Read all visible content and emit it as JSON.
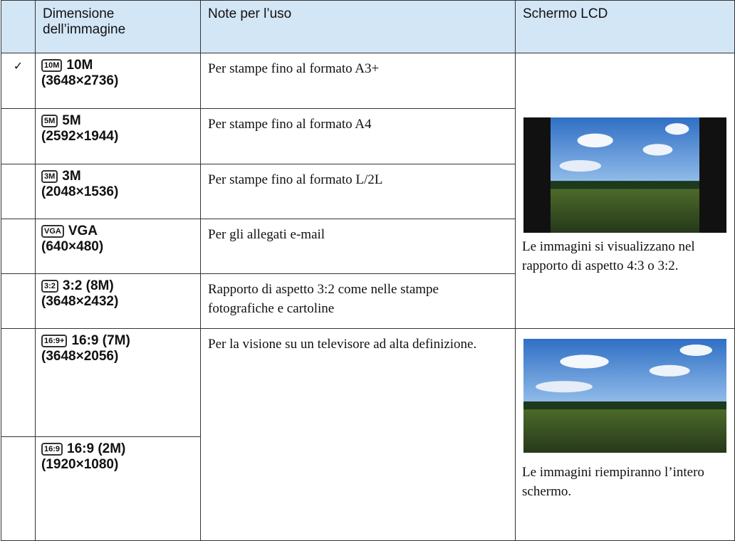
{
  "table": {
    "header": [
      "Dimensione dell’immagine",
      "Note per l’uso",
      "Schermo LCD"
    ],
    "rows": [
      {
        "icon": "10M",
        "size": "10M",
        "resolution": "(3648×2736)",
        "note": "Per stampe fino al formato A3+"
      },
      {
        "icon": "5M",
        "size": "5M",
        "resolution": "(2592×1944)",
        "note": "Per stampe fino al formato A4"
      },
      {
        "icon": "3M",
        "size": "3M",
        "resolution": "(2048×1536)",
        "note": "Per stampe fino al formato L/2L"
      },
      {
        "icon": "VGA",
        "size": "VGA",
        "resolution": "(640×480)",
        "note": "Per gli allegati e-mail"
      },
      {
        "icon": "3:2",
        "size": "3:2 (8M)",
        "resolution": "(3648×2432)",
        "note": "Rapporto di aspetto 3:2 come nelle stampe fotografiche e cartoline"
      },
      {
        "icon": "16:9+",
        "size": "16:9 (7M)",
        "resolution": "(3648×2056)",
        "note": "Per la visione su un televisore ad alta definizione."
      },
      {
        "icon": "16:9",
        "size": "16:9 (2M)",
        "resolution": "(1920×1080)"
      }
    ],
    "lcd": [
      "Le immagini si visualizzano nel rapporto di aspetto 4:3 o 3:2.",
      "Le immagini riempiranno l’intero schermo."
    ]
  }
}
